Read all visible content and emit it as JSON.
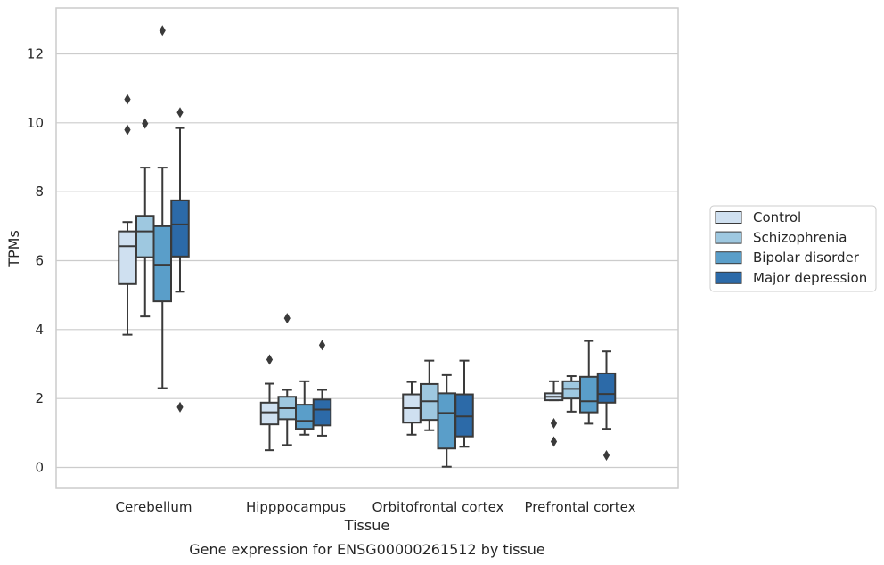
{
  "caption": "Gene expression for ENSG00000261512 by tissue",
  "chart_data": {
    "type": "box",
    "title": "",
    "xlabel": "Tissue",
    "ylabel": "TPMs",
    "ylim": [
      -0.6,
      13.3
    ],
    "yticks": [
      0,
      2,
      4,
      6,
      8,
      10,
      12
    ],
    "grid": "horizontal",
    "legend_position": "right",
    "categories": [
      "Cerebellum",
      "Hipppocampus",
      "Orbitofrontal cortex",
      "Prefrontal cortex"
    ],
    "series": [
      {
        "name": "Control",
        "color": "#cfe0f0",
        "boxes": [
          {
            "whislo": 3.85,
            "q1": 5.32,
            "med": 6.42,
            "q3": 6.85,
            "whishi": 7.12,
            "fliers": [
              9.8,
              10.68
            ]
          },
          {
            "whislo": 0.5,
            "q1": 1.25,
            "med": 1.6,
            "q3": 1.88,
            "whishi": 2.43,
            "fliers": [
              3.13
            ]
          },
          {
            "whislo": 0.95,
            "q1": 1.3,
            "med": 1.72,
            "q3": 2.12,
            "whishi": 2.48,
            "fliers": []
          },
          {
            "whislo": 1.95,
            "q1": 1.95,
            "med": 2.05,
            "q3": 2.15,
            "whishi": 2.5,
            "fliers": [
              1.28,
              0.75
            ]
          }
        ]
      },
      {
        "name": "Schizophrenia",
        "color": "#9ec8e0",
        "boxes": [
          {
            "whislo": 4.38,
            "q1": 6.1,
            "med": 6.85,
            "q3": 7.3,
            "whishi": 8.7,
            "fliers": [
              9.98
            ]
          },
          {
            "whislo": 0.65,
            "q1": 1.4,
            "med": 1.72,
            "q3": 2.05,
            "whishi": 2.25,
            "fliers": [
              4.33
            ]
          },
          {
            "whislo": 1.08,
            "q1": 1.38,
            "med": 1.92,
            "q3": 2.42,
            "whishi": 3.1,
            "fliers": []
          },
          {
            "whislo": 1.62,
            "q1": 2.0,
            "med": 2.28,
            "q3": 2.5,
            "whishi": 2.65,
            "fliers": []
          }
        ]
      },
      {
        "name": "Bipolar disorder",
        "color": "#5a9ec9",
        "boxes": [
          {
            "whislo": 2.3,
            "q1": 4.82,
            "med": 5.88,
            "q3": 7.0,
            "whishi": 8.7,
            "fliers": [
              12.68
            ]
          },
          {
            "whislo": 0.95,
            "q1": 1.12,
            "med": 1.35,
            "q3": 1.82,
            "whishi": 2.5,
            "fliers": []
          },
          {
            "whislo": 0.02,
            "q1": 0.55,
            "med": 1.58,
            "q3": 2.15,
            "whishi": 2.68,
            "fliers": []
          },
          {
            "whislo": 1.27,
            "q1": 1.6,
            "med": 1.92,
            "q3": 2.63,
            "whishi": 3.67,
            "fliers": []
          }
        ]
      },
      {
        "name": "Major depression",
        "color": "#2c6aa8",
        "boxes": [
          {
            "whislo": 5.1,
            "q1": 6.12,
            "med": 7.05,
            "q3": 7.75,
            "whishi": 9.85,
            "fliers": [
              10.3,
              1.75
            ]
          },
          {
            "whislo": 0.92,
            "q1": 1.22,
            "med": 1.68,
            "q3": 1.97,
            "whishi": 2.25,
            "fliers": [
              3.55
            ]
          },
          {
            "whislo": 0.6,
            "q1": 0.9,
            "med": 1.48,
            "q3": 2.12,
            "whishi": 3.1,
            "fliers": []
          },
          {
            "whislo": 1.12,
            "q1": 1.88,
            "med": 2.13,
            "q3": 2.73,
            "whishi": 3.37,
            "fliers": [
              0.35
            ]
          }
        ]
      }
    ]
  },
  "colors": {
    "grid": "#cccccc",
    "frame": "#cccccc",
    "edge": "#3a3a3a",
    "text": "#262626"
  }
}
